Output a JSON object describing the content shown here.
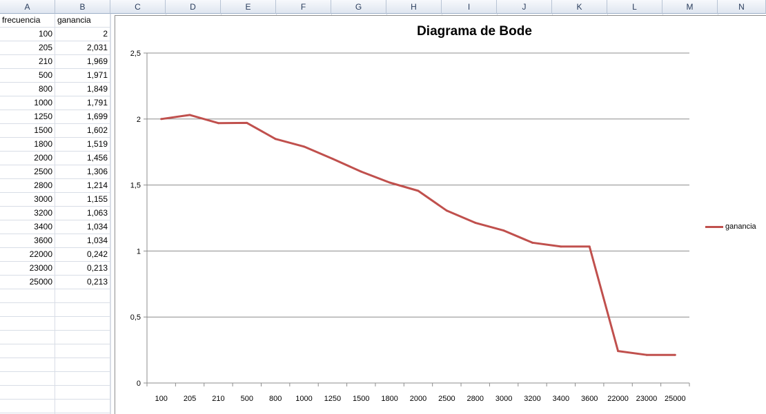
{
  "spreadsheet": {
    "columns": [
      "A",
      "B",
      "C",
      "D",
      "E",
      "F",
      "G",
      "H",
      "I",
      "J",
      "K",
      "L",
      "M",
      "N"
    ],
    "header_row": {
      "a": "frecuencia",
      "b": "ganancia"
    },
    "rows": [
      {
        "a": "100",
        "b": "2"
      },
      {
        "a": "205",
        "b": "2,031"
      },
      {
        "a": "210",
        "b": "1,969"
      },
      {
        "a": "500",
        "b": "1,971"
      },
      {
        "a": "800",
        "b": "1,849"
      },
      {
        "a": "1000",
        "b": "1,791"
      },
      {
        "a": "1250",
        "b": "1,699"
      },
      {
        "a": "1500",
        "b": "1,602"
      },
      {
        "a": "1800",
        "b": "1,519"
      },
      {
        "a": "2000",
        "b": "1,456"
      },
      {
        "a": "2500",
        "b": "1,306"
      },
      {
        "a": "2800",
        "b": "1,214"
      },
      {
        "a": "3000",
        "b": "1,155"
      },
      {
        "a": "3200",
        "b": "1,063"
      },
      {
        "a": "3400",
        "b": "1,034"
      },
      {
        "a": "3600",
        "b": "1,034"
      },
      {
        "a": "22000",
        "b": "0,242"
      },
      {
        "a": "23000",
        "b": "0,213"
      },
      {
        "a": "25000",
        "b": "0,213"
      }
    ]
  },
  "chart_data": {
    "type": "line",
    "title": "Diagrama de  Bode",
    "categories": [
      "100",
      "205",
      "210",
      "500",
      "800",
      "1000",
      "1250",
      "1500",
      "1800",
      "2000",
      "2500",
      "2800",
      "3000",
      "3200",
      "3400",
      "3600",
      "22000",
      "23000",
      "25000"
    ],
    "series": [
      {
        "name": "ganancia",
        "color": "#c0504d",
        "values": [
          2,
          2.031,
          1.969,
          1.971,
          1.849,
          1.791,
          1.699,
          1.602,
          1.519,
          1.456,
          1.306,
          1.214,
          1.155,
          1.063,
          1.034,
          1.034,
          0.242,
          0.213,
          0.213
        ]
      }
    ],
    "ylim": [
      0,
      2.5
    ],
    "yticks": [
      "0",
      "0,5",
      "1",
      "1,5",
      "2",
      "2,5"
    ],
    "grid": true,
    "legend_position": "right"
  }
}
